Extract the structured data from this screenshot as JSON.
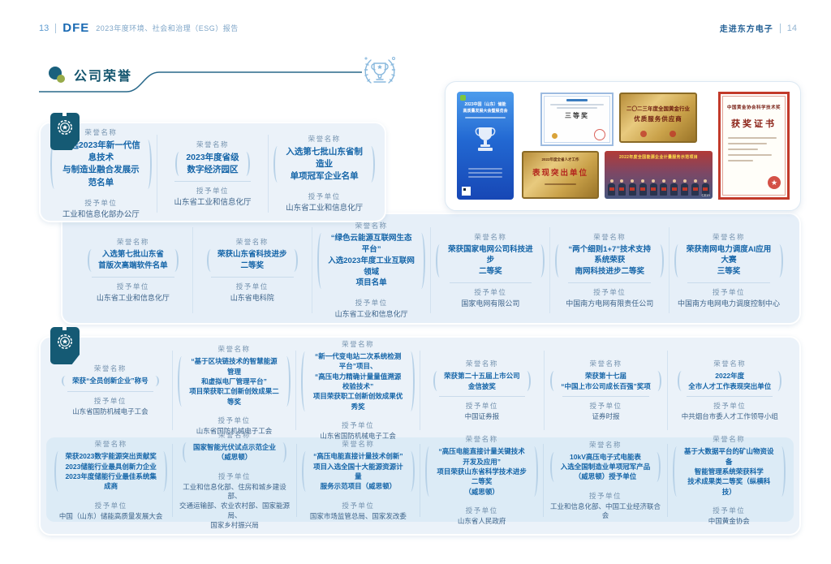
{
  "header": {
    "page_left": "13",
    "logo": "DFE",
    "report_title": "2023年度环境、社会和治理（ESG）报告",
    "section_right": "走进东方电子",
    "page_right": "14"
  },
  "section": {
    "title": "公司荣誉"
  },
  "labels": {
    "honor": "荣誉名称",
    "unit": "授予单位"
  },
  "colors": {
    "accent_teal": "#155a74",
    "honor_blue": "#1565a8",
    "box_fill": "#ebf2f9"
  },
  "groups": {
    "a": [
      {
        "name": "入选2023年新一代信息技术\n与制造业融合发展示范名单",
        "unit": "工业和信息化部办公厅"
      },
      {
        "name": "2023年度省级\n数字经济园区",
        "unit": "山东省工业和信息化厅"
      },
      {
        "name": "入选第七批山东省制造业\n单项冠军企业名单",
        "unit": "山东省工业和信息化厅"
      }
    ],
    "b": [
      {
        "name": "入选第七批山东省\n首版次高端软件名单",
        "unit": "山东省工业和信息化厅"
      },
      {
        "name": "荣获山东省科技进步\n二等奖",
        "unit": "山东省电科院"
      },
      {
        "name": "“绿色云能源互联网生态平台”\n入选2023年度工业互联网领域\n项目名单",
        "unit": "山东省工业和信息化厅"
      },
      {
        "name": "荣获国家电网公司科技进步\n二等奖",
        "unit": "国家电网有限公司"
      },
      {
        "name": "“两个细则1+7”技术支持系统荣获\n南网科技进步二等奖",
        "unit": "中国南方电网有限责任公司"
      },
      {
        "name": "荣获南网电力调度AI应用大赛\n三等奖",
        "unit": "中国南方电网电力调度控制中心"
      }
    ],
    "c1": [
      {
        "name": "荣获“全员创新企业”称号",
        "unit": "山东省国防机械电子工会"
      },
      {
        "name": "“基于区块链技术的智慧能源管理\n和虚拟电厂管理平台”\n项目荣获职工创新创效成果二等奖",
        "unit": "山东省国防机械电子工会"
      },
      {
        "name": "“新一代变电站二次系统检测平台”项目、\n“高压电力精确计量量值溯源校验技术”\n项目荣获职工创新创效成果优秀奖",
        "unit": "山东省国防机械电子工会"
      },
      {
        "name": "荣获第二十五届上市公司\n金信披奖",
        "unit": "中国证券报"
      },
      {
        "name": "荣获第十七届\n“中国上市公司成长百强”奖项",
        "unit": "证券时报"
      },
      {
        "name": "2022年度\n全市人才工作表现突出单位",
        "unit": "中共烟台市委人才工作领导小组"
      }
    ],
    "c2": [
      {
        "name": "荣获2023数字能源突出贡献奖\n2023储能行业最具创新力企业\n2023年度储能行业最佳系统集成商",
        "unit": "中国（山东）储能高质量发展大会"
      },
      {
        "name": "国家智能光伏试点示范企业\n（威思顿）",
        "unit": "工业和信息化部、住房和城乡建设部、\n交通运输部、农业农村部、国家能源局、\n国家乡村振兴局"
      },
      {
        "name": "“高压电能直接计量技术创新”\n项目入选全国十大能源资源计量\n服务示范项目（威思顿）",
        "unit": "国家市场监管总局、国家发改委"
      },
      {
        "name": "“高压电能直接计量关键技术开发及应用”\n项目荣获山东省科学技术进步二等奖\n（威思顿）",
        "unit": "山东省人民政府"
      },
      {
        "name": "10kV高压电子式电能表\n入选全国制造业单项冠军产品\n（威思顿）授予单位",
        "unit": "工业和信息化部、中国工业经济联合会"
      },
      {
        "name": "基于大数据平台的矿山物资设备\n智能管理系统荣获科学\n技术成果类二等奖（纵横科技）",
        "unit": "中国黄金协会"
      }
    ]
  },
  "collage": {
    "poster": {
      "title": "2023中国（山东）储能\n高质量发展大会暨展览会"
    },
    "cert_power": {
      "award": "三等奖"
    },
    "gold_supplier": {
      "line1": "二〇二三年度全国黄金行业",
      "line2": "优质服务供应商"
    },
    "gold_talent": {
      "header": "2022年度全省人才工作",
      "main": "表现突出单位"
    },
    "photo": {
      "banner": "2022年度全国能源企业计量服务示范项目",
      "logo": "CEIA"
    },
    "cert_gold": {
      "org": "中国黄金协会科学技术奖",
      "title": "获奖证书",
      "seal_star": "★"
    }
  }
}
